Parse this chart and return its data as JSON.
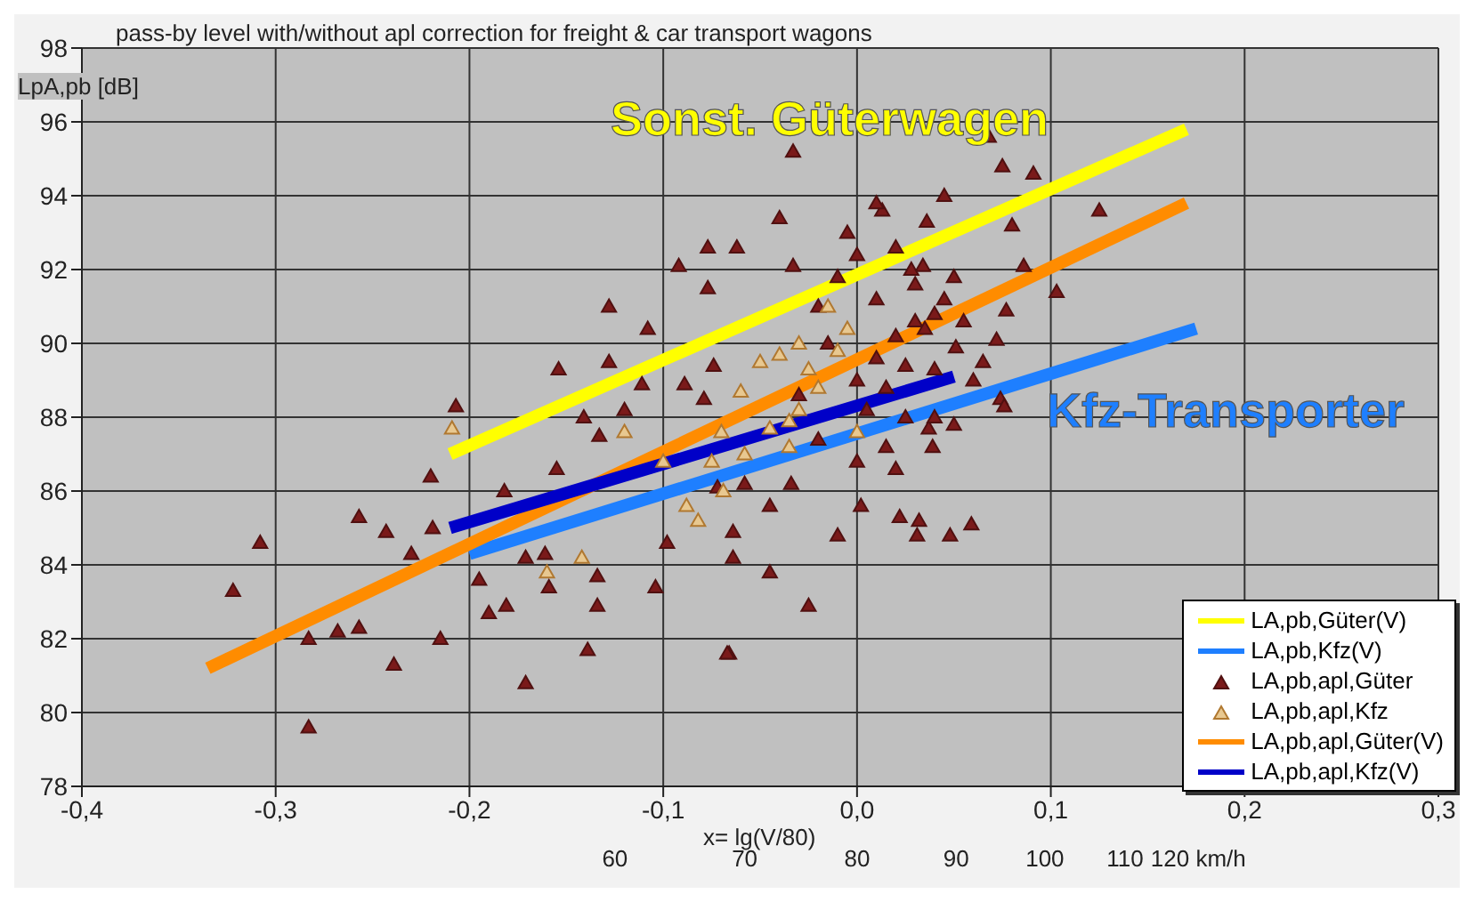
{
  "chart_data": {
    "type": "scatter",
    "title": "pass-by level with/without apl correction for freight & car transport wagons",
    "xlabel": "x= lg(V/80)",
    "ylabel": "LpA,pb [dB]",
    "xlim": [
      -0.4,
      0.3
    ],
    "xticks": [
      {
        "value": -0.4,
        "label": "-0,4"
      },
      {
        "value": -0.3,
        "label": "-0,3"
      },
      {
        "value": -0.2,
        "label": "-0,2"
      },
      {
        "value": -0.1,
        "label": "-0,1"
      },
      {
        "value": 0,
        "label": "0,0"
      },
      {
        "value": 0.1,
        "label": "0,1"
      },
      {
        "value": 0.2,
        "label": "0,2"
      },
      {
        "value": 0.3,
        "label": "0,3"
      }
    ],
    "x2lim": [
      31.85,
      159.6
    ],
    "x2ticks": [
      60,
      70,
      80,
      90,
      100,
      110,
      {
        "value": 120,
        "label": "120 km/h"
      }
    ],
    "log": "x2",
    "ylim": [
      78,
      98
    ],
    "yticks": [
      78,
      80,
      82,
      84,
      86,
      88,
      90,
      92,
      94,
      96,
      98
    ],
    "grid": true,
    "legend": "bottom right",
    "series": [
      {
        "name": "LA,pb,Güter(V)",
        "type": "line",
        "color": "#ffff00",
        "x": [
          -0.21,
          0.17
        ],
        "values": [
          87.0,
          95.8
        ]
      },
      {
        "name": "LA,pb,Kfz(V)",
        "type": "line",
        "color": "#1e7fff",
        "x": [
          -0.2,
          0.175
        ],
        "values": [
          84.3,
          90.4
        ]
      },
      {
        "name": "LA,pb,apl,Güter",
        "marker": "triangle",
        "color": "#7a1a1a",
        "x": [
          -0.322,
          -0.308,
          -0.283,
          -0.283,
          -0.268,
          -0.257,
          -0.257,
          -0.243,
          -0.239,
          -0.23,
          -0.219,
          -0.215,
          -0.22,
          -0.195,
          -0.19,
          -0.181,
          -0.182,
          -0.171,
          -0.171,
          -0.161,
          -0.159,
          -0.155,
          -0.139,
          -0.134,
          -0.134,
          -0.104,
          -0.098,
          -0.066,
          -0.064,
          -0.207,
          -0.154,
          -0.128,
          -0.108,
          -0.092,
          -0.077,
          -0.077,
          -0.128,
          -0.141,
          -0.133,
          -0.12,
          -0.111,
          -0.089,
          -0.074,
          -0.079,
          -0.033,
          0.068,
          0.075,
          0.091,
          0.125,
          -0.04,
          -0.062,
          -0.033,
          0.034,
          0.086,
          0.103,
          0.08,
          0.045,
          0.036,
          0.013,
          0.074,
          0.077,
          0.072,
          0.051,
          0.04,
          0.065,
          0.05,
          0.076,
          0.037,
          -0.072,
          -0.064,
          -0.058,
          -0.045,
          -0.034,
          -0.01,
          0.002,
          0.022,
          0.032,
          0.031,
          0.048,
          0.059,
          0.039,
          -0.045,
          -0.025,
          -0.067,
          -0.02,
          -0.01,
          0.0,
          0.01,
          0.02,
          0.03,
          0.0,
          0.01,
          0.02,
          0.03,
          0.04,
          -0.015,
          0.005,
          0.015,
          0.025,
          0.035,
          0.045,
          0.055,
          0.06,
          0.0,
          0.015,
          0.025,
          0.04,
          -0.005,
          0.01,
          0.028,
          0.05,
          -0.03,
          -0.02,
          0.02
        ],
        "values": [
          83.3,
          84.6,
          82.0,
          79.6,
          82.2,
          82.3,
          85.3,
          84.9,
          81.3,
          84.3,
          85.0,
          82.0,
          86.4,
          83.6,
          82.7,
          82.9,
          86.0,
          84.2,
          80.8,
          84.3,
          83.4,
          86.6,
          81.7,
          83.7,
          82.9,
          83.4,
          84.6,
          81.6,
          84.2,
          88.3,
          89.3,
          91.0,
          90.4,
          92.1,
          92.6,
          91.5,
          89.5,
          88.0,
          87.5,
          88.2,
          88.9,
          88.9,
          89.4,
          88.5,
          95.2,
          95.6,
          94.8,
          94.6,
          93.6,
          93.4,
          92.6,
          92.1,
          92.1,
          92.1,
          91.4,
          93.2,
          94.0,
          93.3,
          93.6,
          88.5,
          90.9,
          90.1,
          89.9,
          89.3,
          89.5,
          87.8,
          88.3,
          87.7,
          86.1,
          84.9,
          86.2,
          85.6,
          86.2,
          84.8,
          85.6,
          85.3,
          85.2,
          84.8,
          84.8,
          85.1,
          87.2,
          83.8,
          82.9,
          81.6,
          91.0,
          91.8,
          92.4,
          91.2,
          92.6,
          90.6,
          89.0,
          89.6,
          90.2,
          91.6,
          90.8,
          90.0,
          88.2,
          88.8,
          89.4,
          90.4,
          91.2,
          90.6,
          89.0,
          86.8,
          87.2,
          88.0,
          88.0,
          93.0,
          93.8,
          92.0,
          91.8,
          88.6,
          87.4,
          86.6
        ]
      },
      {
        "name": "LA,pb,apl,Kfz",
        "marker": "triangle",
        "color": "#e8c890",
        "x": [
          -0.06,
          -0.05,
          -0.04,
          -0.03,
          -0.025,
          -0.02,
          -0.045,
          -0.035,
          -0.03,
          -0.01,
          -0.005,
          0.0,
          -0.07,
          -0.075,
          -0.058,
          -0.015,
          -0.12,
          -0.1,
          -0.088,
          -0.082,
          -0.16,
          -0.142,
          -0.209,
          -0.069,
          -0.035
        ],
        "values": [
          88.7,
          89.5,
          89.7,
          90.0,
          89.3,
          88.8,
          87.7,
          87.2,
          88.2,
          89.8,
          90.4,
          87.6,
          87.6,
          86.8,
          87.0,
          91.0,
          87.6,
          86.8,
          85.6,
          85.2,
          83.8,
          84.2,
          87.7,
          86.0,
          87.9
        ]
      },
      {
        "name": "LA,pb,apl,Güter(V)",
        "type": "line",
        "color": "#ff8c00",
        "x": [
          -0.335,
          0.17
        ],
        "values": [
          81.2,
          93.8
        ]
      },
      {
        "name": "LA,pb,apl,Kfz(V)",
        "type": "line",
        "color": "#0000c8",
        "x": [
          -0.21,
          0.05
        ],
        "values": [
          85.0,
          89.1
        ]
      }
    ],
    "annotations": [
      "Sonst. Güterwagen",
      "Kfz-Transporter"
    ]
  }
}
